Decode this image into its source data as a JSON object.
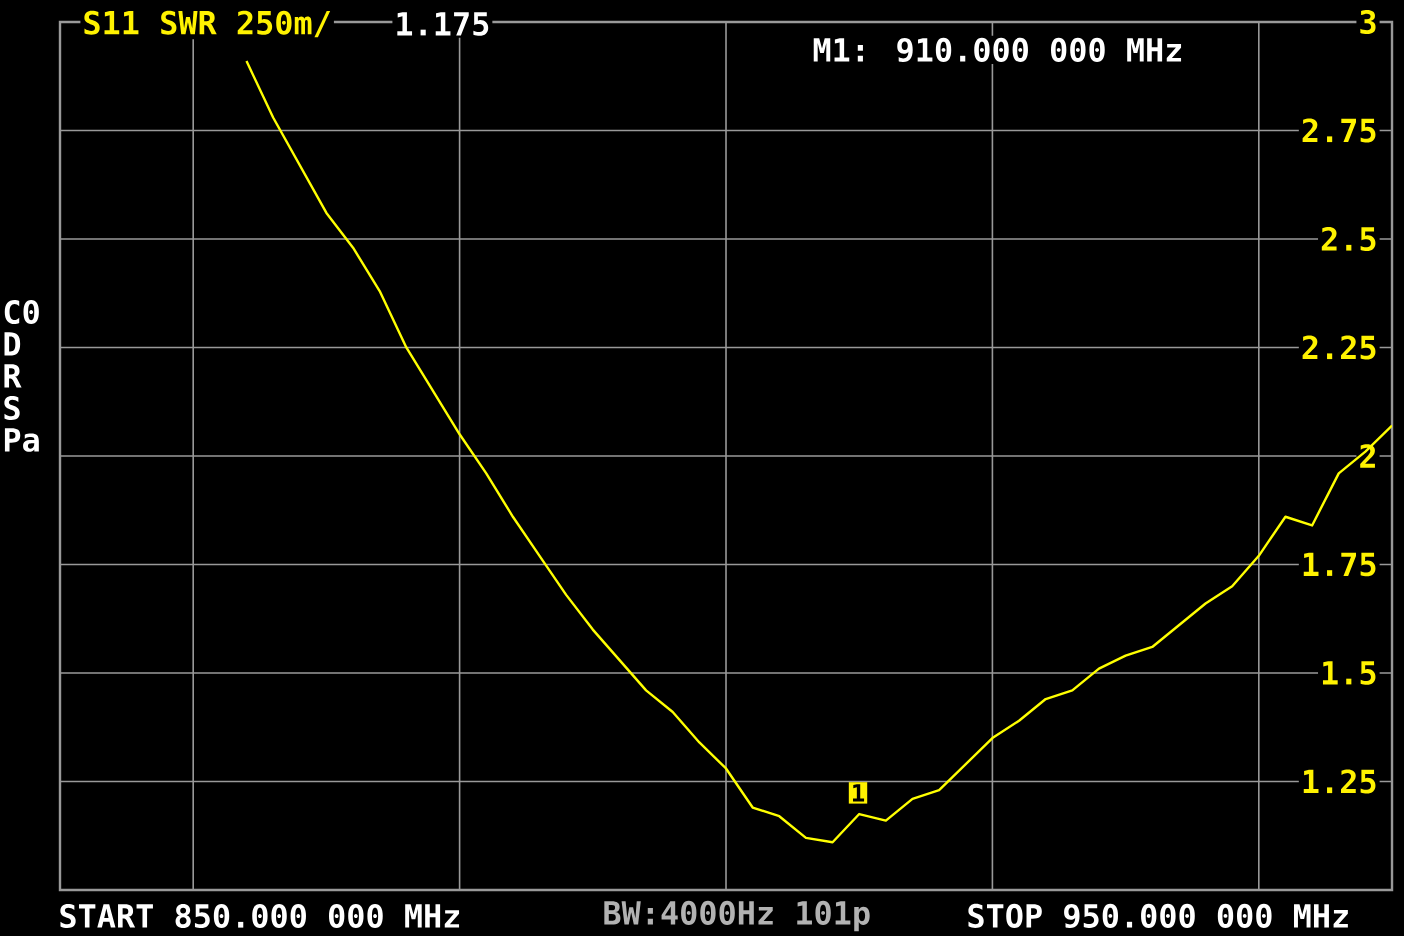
{
  "chart_data": {
    "type": "line",
    "title": "S11 SWR 250m/",
    "annotations": [
      "1.175",
      "M1: 910.000 000 MHz",
      "START 850.000 000 MHz",
      "BW:4000Hz 101p",
      "STOP 950.000 000 MHz",
      "C0",
      "D",
      "R",
      "S",
      "Pa",
      "1"
    ],
    "categories": [
      null,
      null,
      null,
      null,
      null,
      null,
      null,
      null,
      null,
      null,
      null,
      null,
      null,
      null,
      null,
      null,
      null,
      null,
      null,
      null,
      null,
      null,
      null,
      null,
      null,
      null,
      null,
      null,
      null,
      null,
      null,
      null,
      null,
      null,
      null,
      null,
      null,
      null,
      null,
      null,
      null,
      null,
      null,
      null,
      null,
      null,
      null,
      null,
      null,
      null,
      null
    ],
    "ylim": [
      1,
      3
    ],
    "yticks": [
      1.25,
      1.5,
      1.75,
      2,
      2.25,
      2.5,
      2.75,
      3
    ],
    "grid": true,
    "marker": "none",
    "line_style": "solid",
    "series": [
      {
        "color": "#ffff00",
        "values": [
          null,
          null,
          null,
          null,
          null,
          null,
          null,
          2.91,
          2.78,
          2.67,
          2.56,
          2.48,
          2.38,
          2.25,
          2.15,
          2.05,
          1.96,
          1.86,
          1.77,
          1.68,
          1.6,
          1.53,
          1.46,
          1.41,
          1.34,
          1.28,
          1.19,
          1.17,
          1.12,
          1.11,
          1.175,
          1.16,
          1.21,
          1.23,
          1.29,
          1.35,
          1.39,
          1.44,
          1.46,
          1.51,
          1.54,
          1.56,
          1.61,
          1.66,
          1.7,
          1.77,
          1.86,
          1.84,
          1.96,
          2.01,
          2.07
        ]
      }
    ]
  }
}
